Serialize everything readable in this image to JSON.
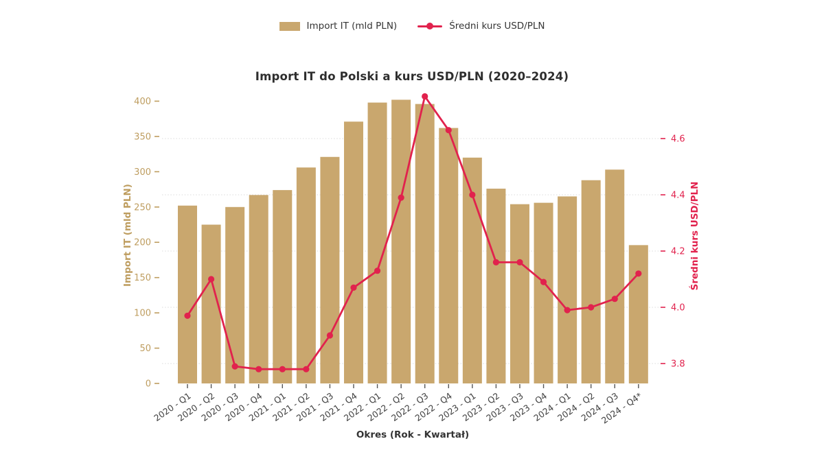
{
  "title": "Import IT do Polski a kurs USD/PLN (2020–2024)",
  "legend": {
    "bar_label": "Import IT (mld PLN)",
    "line_label": "Średni kurs USD/PLN"
  },
  "colors": {
    "bar": "#C9A76E",
    "axis_gold_text": "#BE9D5F",
    "line": "#E1224D",
    "right_axis_text": "#E1224D",
    "dark_text": "#333333",
    "tick_text": "#404040",
    "grid": "#DBDBDB",
    "background": "#FFFFFF"
  },
  "chart_data": {
    "type": "bar",
    "subtype": "combo-bar-line-dual-axis",
    "title": "Import IT do Polski a kurs USD/PLN (2020–2024)",
    "xlabel": "Okres (Rok - Kwartał)",
    "ylabel_left": "Import IT (mld PLN)",
    "ylabel_right": "Średni kurs USD/PLN",
    "categories": [
      "2020 - Q1",
      "2020 - Q2",
      "2020 - Q3",
      "2020 - Q4",
      "2021 - Q1",
      "2021 - Q2",
      "2021 - Q3",
      "2021 - Q4",
      "2022 - Q1",
      "2022 - Q2",
      "2022 - Q3",
      "2022 - Q4",
      "2023 - Q1",
      "2023 - Q2",
      "2023 - Q3",
      "2023 - Q4",
      "2024 - Q1",
      "2024 - Q2",
      "2024 - Q3",
      "2024 - Q4*"
    ],
    "series": [
      {
        "name": "Import IT (mld PLN)",
        "type": "bar",
        "axis": "left",
        "values": [
          252,
          225,
          250,
          267,
          274,
          306,
          321,
          371,
          398,
          402,
          396,
          362,
          320,
          276,
          254,
          256,
          265,
          288,
          303,
          196
        ]
      },
      {
        "name": "Średni kurs USD/PLN",
        "type": "line",
        "axis": "right",
        "values": [
          3.97,
          4.1,
          3.79,
          3.78,
          3.78,
          3.78,
          3.9,
          4.07,
          4.13,
          4.39,
          4.75,
          4.63,
          4.4,
          4.16,
          4.16,
          4.09,
          3.99,
          4.0,
          4.03,
          4.12
        ]
      }
    ],
    "yticks_left": [
      0,
      50,
      100,
      150,
      200,
      250,
      300,
      350,
      400
    ],
    "yticks_right": [
      3.8,
      4.0,
      4.2,
      4.4,
      4.6
    ],
    "ylim_left": [
      0,
      400
    ],
    "ylim_right": [
      3.8,
      4.6
    ],
    "grid": "horizontal dotted lines at right-axis ticks",
    "legend_position": "top center",
    "x_tick_rotation": -35
  }
}
